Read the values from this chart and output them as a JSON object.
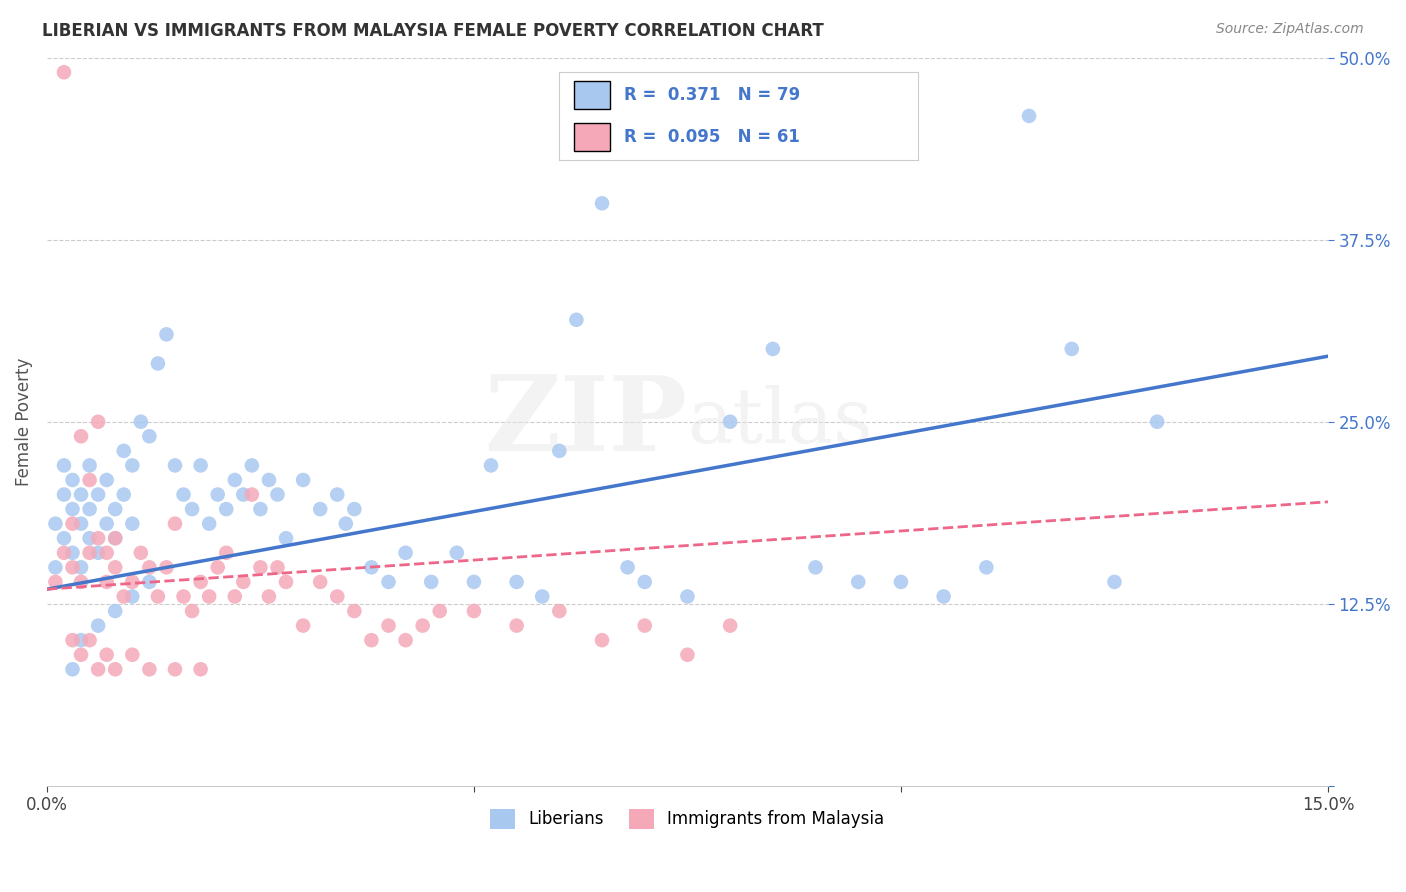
{
  "title": "LIBERIAN VS IMMIGRANTS FROM MALAYSIA FEMALE POVERTY CORRELATION CHART",
  "source": "Source: ZipAtlas.com",
  "ylabel": "Female Poverty",
  "xlim": [
    0.0,
    0.15
  ],
  "ylim": [
    0.0,
    0.5
  ],
  "liberian_color": "#a8c8f0",
  "malaysia_color": "#f4a8b8",
  "liberian_line_color": "#4477cc",
  "malaysia_line_color": "#ee6688",
  "R_liberian": 0.371,
  "N_liberian": 79,
  "R_malaysia": 0.095,
  "N_malaysia": 61,
  "background_color": "#ffffff",
  "watermark": "ZIPatlas",
  "lib_line_x0": 0.0,
  "lib_line_y0": 0.135,
  "lib_line_x1": 0.15,
  "lib_line_y1": 0.295,
  "mal_line_x0": 0.0,
  "mal_line_y0": 0.135,
  "mal_line_x1": 0.15,
  "mal_line_y1": 0.195
}
